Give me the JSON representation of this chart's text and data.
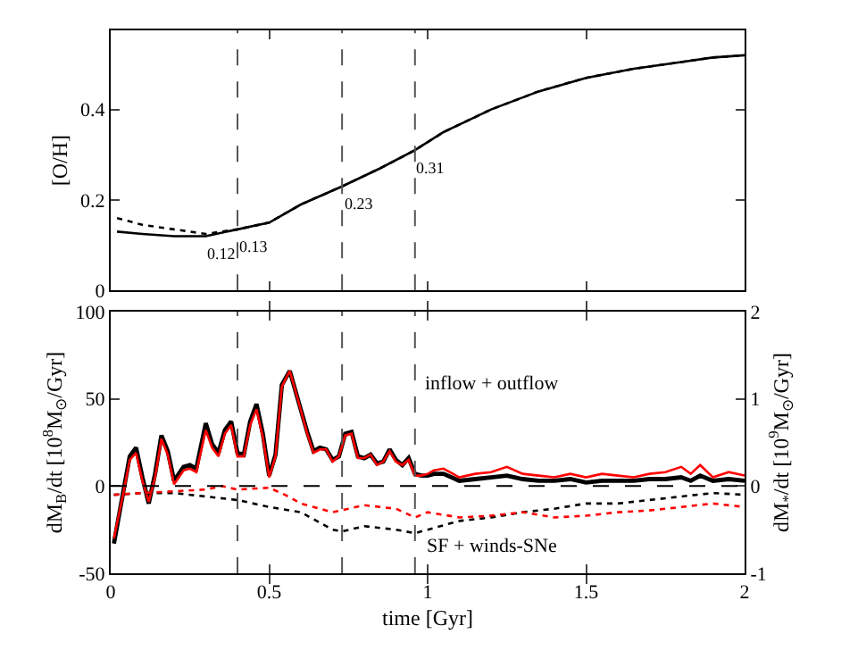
{
  "chart_data": [
    {
      "type": "line",
      "ylabel": "[O/H]",
      "xlim": [
        0,
        2
      ],
      "xticks": [
        0,
        0.5,
        1,
        1.5,
        2
      ],
      "ylim": [
        0,
        0.575
      ],
      "yticks": [
        0,
        0.2,
        0.4
      ],
      "tick_labels": "y",
      "marker": "none",
      "series": [
        {
          "color": "#000000",
          "line_style": "solid",
          "x": [
            0.02,
            0.1,
            0.2,
            0.3,
            0.4,
            0.5,
            0.6,
            0.73,
            0.85,
            0.96,
            1.05,
            1.2,
            1.35,
            1.5,
            1.65,
            1.8,
            1.9,
            2.0
          ],
          "values": [
            0.13,
            0.125,
            0.12,
            0.12,
            0.135,
            0.15,
            0.19,
            0.23,
            0.27,
            0.31,
            0.35,
            0.4,
            0.44,
            0.47,
            0.49,
            0.505,
            0.515,
            0.52
          ]
        },
        {
          "color": "#000000",
          "line_style": "dotted",
          "x": [
            0.02,
            0.1,
            0.2,
            0.3,
            0.4,
            0.5,
            0.6,
            0.73,
            0.85,
            0.96,
            1.05,
            1.2,
            1.35,
            1.5,
            1.65,
            1.8,
            1.9,
            2.0
          ],
          "values": [
            0.16,
            0.145,
            0.135,
            0.125,
            0.135,
            0.15,
            0.19,
            0.23,
            0.27,
            0.31,
            0.35,
            0.4,
            0.44,
            0.47,
            0.49,
            0.505,
            0.515,
            0.52
          ]
        }
      ],
      "ref_lines": [
        {
          "axis": "x",
          "value": 0.4,
          "color": "#555555",
          "line_style": "dashed"
        },
        {
          "axis": "x",
          "value": 0.73,
          "color": "#555555",
          "line_style": "dashed"
        },
        {
          "axis": "x",
          "value": 0.96,
          "color": "#555555",
          "line_style": "dashed"
        }
      ],
      "annotations": [
        {
          "text": "0.12",
          "x": 0.3,
          "y": 0.12
        },
        {
          "text": "0.13",
          "x": 0.4,
          "y": 0.135
        },
        {
          "text": "0.23",
          "x": 0.73,
          "y": 0.23
        },
        {
          "text": "0.31",
          "x": 0.96,
          "y": 0.31
        }
      ]
    },
    {
      "type": "line",
      "xlabel": "time [Gyr]",
      "ylabel": "dM$_{B}$/dt [10$^{8}$M$_{⊙}$/Gyr]",
      "y2label": "dM$_{*}$/dt [10$^{9}$M$_{⊙}$/Gyr]",
      "xlim": [
        0,
        2
      ],
      "xticks": [
        0,
        0.5,
        1,
        1.5,
        2
      ],
      "ylim": [
        -50,
        100
      ],
      "yticks": [
        -50,
        0,
        50,
        100
      ],
      "y2lim": [
        -1,
        2
      ],
      "y2ticks": [
        -1,
        0,
        1,
        2
      ],
      "marker": "none",
      "series": [
        {
          "color": "#000000",
          "line_style": "solid",
          "x": [
            0.01,
            0.04,
            0.06,
            0.08,
            0.1,
            0.12,
            0.14,
            0.16,
            0.18,
            0.2,
            0.23,
            0.25,
            0.27,
            0.3,
            0.32,
            0.34,
            0.36,
            0.38,
            0.4,
            0.42,
            0.44,
            0.46,
            0.48,
            0.5,
            0.52,
            0.54,
            0.565,
            0.59,
            0.62,
            0.64,
            0.66,
            0.68,
            0.7,
            0.72,
            0.74,
            0.76,
            0.78,
            0.8,
            0.82,
            0.84,
            0.86,
            0.88,
            0.9,
            0.92,
            0.94,
            0.96,
            0.98,
            1.0,
            1.02,
            1.05,
            1.1,
            1.15,
            1.2,
            1.25,
            1.3,
            1.35,
            1.4,
            1.45,
            1.5,
            1.55,
            1.6,
            1.65,
            1.7,
            1.75,
            1.8,
            1.83,
            1.86,
            1.9,
            1.95,
            2.0
          ],
          "values": [
            -33,
            -3,
            17,
            22,
            5,
            -10,
            7,
            29,
            20,
            3,
            11,
            12,
            10,
            36,
            24,
            19,
            32,
            37,
            19,
            18,
            37,
            47,
            30,
            6,
            18,
            58,
            66,
            50,
            31,
            20,
            22,
            21,
            15,
            17,
            30,
            31,
            17,
            16,
            18,
            13,
            14,
            21,
            15,
            12,
            16,
            7,
            6,
            6,
            7,
            7,
            3,
            4,
            5,
            6,
            4,
            3,
            3,
            4,
            2,
            3,
            3,
            3,
            4,
            4,
            5,
            3,
            6,
            3,
            4,
            3
          ]
        },
        {
          "color": "#ff0000",
          "line_style": "solid",
          "x": [
            0.01,
            0.04,
            0.06,
            0.08,
            0.1,
            0.12,
            0.14,
            0.16,
            0.18,
            0.2,
            0.23,
            0.25,
            0.27,
            0.3,
            0.32,
            0.34,
            0.36,
            0.38,
            0.4,
            0.42,
            0.44,
            0.46,
            0.48,
            0.5,
            0.52,
            0.54,
            0.565,
            0.59,
            0.62,
            0.64,
            0.66,
            0.68,
            0.7,
            0.72,
            0.74,
            0.76,
            0.78,
            0.8,
            0.82,
            0.84,
            0.86,
            0.88,
            0.9,
            0.92,
            0.94,
            0.96,
            0.98,
            1.0,
            1.02,
            1.05,
            1.1,
            1.15,
            1.2,
            1.25,
            1.3,
            1.35,
            1.4,
            1.45,
            1.5,
            1.55,
            1.6,
            1.65,
            1.7,
            1.75,
            1.8,
            1.83,
            1.86,
            1.9,
            1.95,
            2.0
          ],
          "values": [
            -30,
            -4,
            15,
            19,
            3,
            -9,
            5,
            27,
            18,
            1,
            9,
            10,
            8,
            32,
            22,
            17,
            30,
            35,
            17,
            17,
            35,
            44,
            28,
            5,
            17,
            57,
            66,
            50,
            30,
            19,
            21,
            21,
            14,
            17,
            29,
            30,
            16,
            16,
            18,
            12,
            14,
            20,
            14,
            12,
            15,
            6,
            6,
            7,
            9,
            10,
            5,
            7,
            8,
            11,
            7,
            6,
            5,
            7,
            5,
            7,
            6,
            5,
            7,
            8,
            11,
            7,
            12,
            5,
            8,
            6
          ]
        },
        {
          "color": "#000000",
          "line_style": "dotted",
          "axis": "y2",
          "x": [
            0.01,
            0.1,
            0.2,
            0.3,
            0.4,
            0.5,
            0.6,
            0.7,
            0.73,
            0.8,
            0.9,
            0.96,
            1.0,
            1.1,
            1.2,
            1.3,
            1.4,
            1.5,
            1.6,
            1.7,
            1.8,
            1.9,
            2.0
          ],
          "values": [
            -0.1,
            -0.08,
            -0.08,
            -0.12,
            -0.16,
            -0.24,
            -0.3,
            -0.5,
            -0.52,
            -0.46,
            -0.5,
            -0.54,
            -0.5,
            -0.4,
            -0.36,
            -0.3,
            -0.26,
            -0.2,
            -0.2,
            -0.16,
            -0.12,
            -0.08,
            -0.1
          ]
        },
        {
          "color": "#ff0000",
          "line_style": "dotted",
          "axis": "y2",
          "x": [
            0.01,
            0.1,
            0.2,
            0.3,
            0.35,
            0.4,
            0.5,
            0.55,
            0.6,
            0.7,
            0.75,
            0.8,
            0.9,
            0.96,
            1.0,
            1.1,
            1.2,
            1.3,
            1.4,
            1.5,
            1.6,
            1.7,
            1.8,
            1.9,
            2.0
          ],
          "values": [
            -0.1,
            -0.08,
            -0.06,
            -0.04,
            0.0,
            -0.04,
            -0.02,
            -0.1,
            -0.2,
            -0.3,
            -0.26,
            -0.22,
            -0.26,
            -0.36,
            -0.3,
            -0.36,
            -0.34,
            -0.3,
            -0.36,
            -0.34,
            -0.3,
            -0.28,
            -0.24,
            -0.2,
            -0.24
          ]
        }
      ],
      "ref_lines": [
        {
          "axis": "y",
          "value": 0,
          "color": "#000000",
          "line_style": "dashed"
        },
        {
          "axis": "x",
          "value": 0.4,
          "color": "#555555",
          "line_style": "dashed"
        },
        {
          "axis": "x",
          "value": 0.73,
          "color": "#555555",
          "line_style": "dashed"
        },
        {
          "axis": "x",
          "value": 0.96,
          "color": "#555555",
          "line_style": "dashed"
        }
      ],
      "annotations": [
        "inflow + outflow",
        "SF + winds-SNe"
      ]
    }
  ]
}
